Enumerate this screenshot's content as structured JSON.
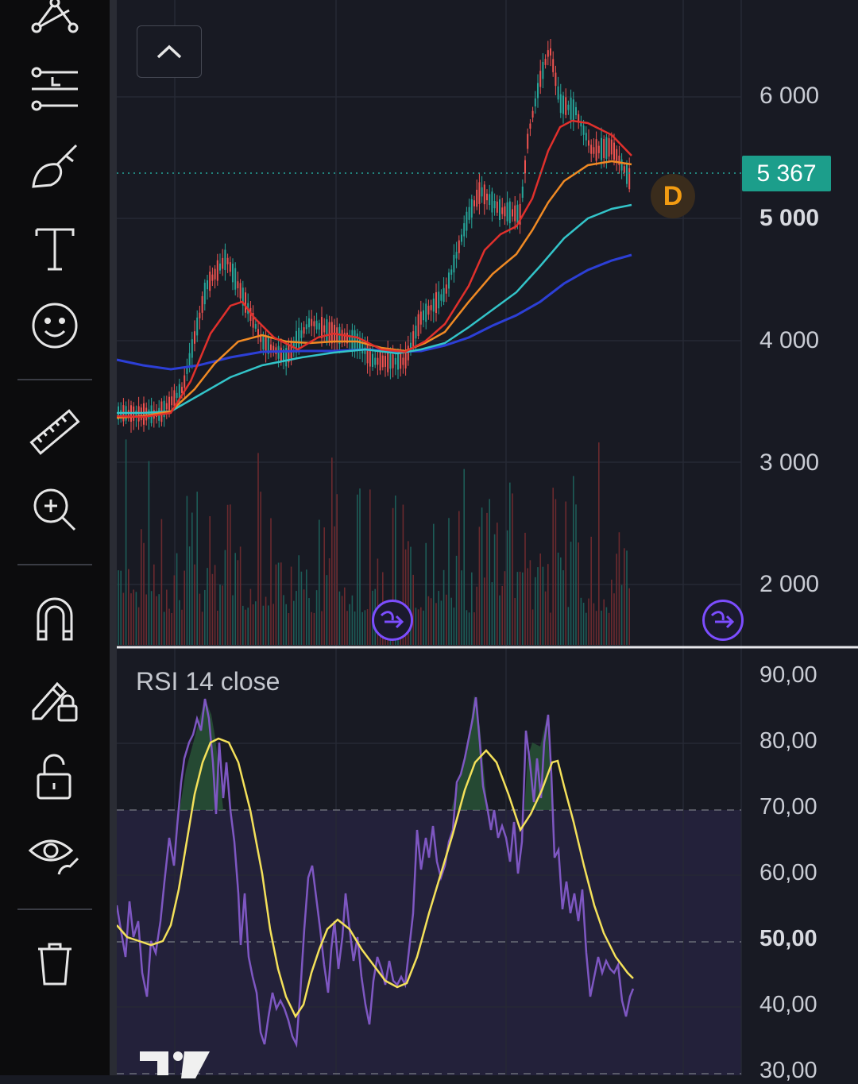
{
  "toolbar": {
    "items": [
      {
        "name": "pattern-tool-icon"
      },
      {
        "name": "fib-tool-icon"
      },
      {
        "name": "brush-tool-icon"
      },
      {
        "name": "text-tool-icon"
      },
      {
        "name": "emoji-tool-icon"
      },
      {
        "name": "ruler-icon"
      },
      {
        "name": "zoom-in-icon"
      },
      {
        "name": "magnet-icon"
      },
      {
        "name": "lock-drawing-icon"
      },
      {
        "name": "unlock-icon"
      },
      {
        "name": "eye-icon"
      },
      {
        "name": "trash-icon"
      }
    ]
  },
  "price_axis": {
    "labels": [
      "6 000",
      "5 000",
      "4 000",
      "3 000",
      "2 000"
    ],
    "current_price": "5 367"
  },
  "badge": {
    "label": "D"
  },
  "rsi": {
    "title": "RSI 14 close",
    "labels": [
      "90,00",
      "80,00",
      "70,00",
      "60,00",
      "50,00",
      "40,00",
      "30,00"
    ]
  },
  "colors": {
    "background": "#181a23",
    "up": "#26a69a",
    "down": "#ef5350",
    "ma_red": "#e0302c",
    "ma_orange": "#f08a24",
    "ma_cyan": "#33c4c9",
    "ma_blue": "#2c3fd6",
    "rsi_line": "#7e57c2",
    "rsi_signal": "#f4e15a",
    "accent_price": "#1c9e8b"
  }
}
